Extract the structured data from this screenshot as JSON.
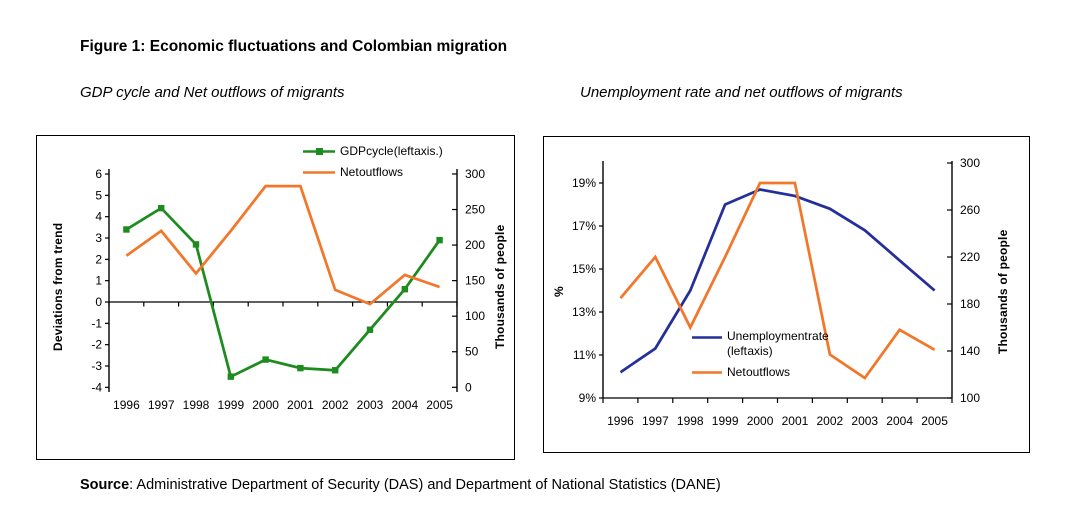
{
  "figure": {
    "title": "Figure 1: Economic fluctuations and Colombian migration",
    "source_label": "Source",
    "source_text": ": Administrative Department of Security (DAS) and Department of National Statistics (DANE)"
  },
  "colors": {
    "gdp_green": "#1E8B1E",
    "outflows_orange": "#F2772A",
    "unemployment_navy": "#252F9A",
    "axis_black": "#000000"
  },
  "chart_data": [
    {
      "type": "line",
      "title": "GDP cycle and Net outflows of migrants",
      "categories": [
        1996,
        1997,
        1998,
        1999,
        2000,
        2001,
        2002,
        2003,
        2004,
        2005
      ],
      "series": [
        {
          "name": "GDP cycle (left axis.)",
          "axis": "left",
          "color_key": "gdp_green",
          "marker": "square",
          "values": [
            3.4,
            4.4,
            2.7,
            -3.5,
            -2.7,
            -3.1,
            -3.2,
            -1.3,
            0.6,
            2.9
          ]
        },
        {
          "name": "Net outflows",
          "axis": "right",
          "color_key": "outflows_orange",
          "marker": "none",
          "values": [
            185,
            220,
            160,
            220,
            283,
            283,
            137,
            117,
            158,
            141
          ]
        }
      ],
      "left_axis": {
        "label": "Deviations from trend",
        "range": [
          -4,
          6
        ],
        "ticks": [
          -4,
          -3,
          -2,
          -1,
          0,
          1,
          2,
          3,
          4,
          5,
          6
        ],
        "tick_suffix": ""
      },
      "right_axis": {
        "label": "Thousands of people",
        "range": [
          0,
          300
        ],
        "ticks": [
          0,
          50,
          100,
          150,
          200,
          250,
          300
        ],
        "tick_suffix": ""
      },
      "legend_position": "inside-top-right",
      "grid": false
    },
    {
      "type": "line",
      "title": "Unemployment rate and net outflows of migrants",
      "categories": [
        1996,
        1997,
        1998,
        1999,
        2000,
        2001,
        2002,
        2003,
        2004,
        2005
      ],
      "series": [
        {
          "name": "Unemployment rate (left axis)",
          "axis": "left",
          "color_key": "unemployment_navy",
          "marker": "none",
          "values": [
            10.2,
            11.3,
            14.0,
            18.0,
            18.7,
            18.4,
            17.8,
            16.8,
            15.4,
            14.0
          ]
        },
        {
          "name": "Net outflows",
          "axis": "right",
          "color_key": "outflows_orange",
          "marker": "none",
          "values": [
            185,
            220,
            160,
            220,
            283,
            283,
            137,
            117,
            158,
            141
          ]
        }
      ],
      "left_axis": {
        "label": "%",
        "range": [
          9,
          19
        ],
        "ticks": [
          9,
          11,
          13,
          15,
          17,
          19
        ],
        "tick_suffix": "%"
      },
      "right_axis": {
        "label": "Thousands of people",
        "range": [
          100,
          300
        ],
        "ticks": [
          100,
          140,
          180,
          220,
          260,
          300
        ],
        "tick_suffix": ""
      },
      "legend_position": "inside-bottom-center",
      "grid": false
    }
  ]
}
